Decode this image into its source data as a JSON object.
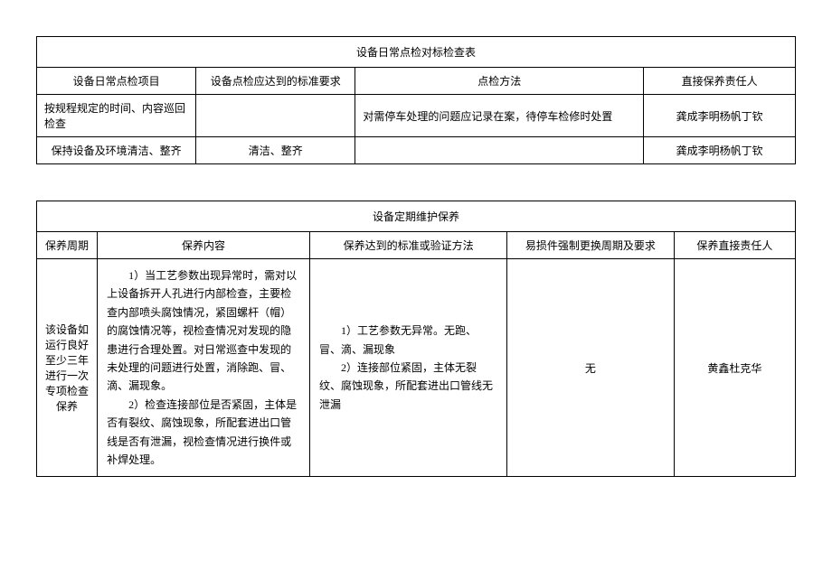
{
  "table1": {
    "title": "设备日常点检对标检查表",
    "headers": {
      "col1": "设备日常点检项目",
      "col2": "设备点检应达到的标准要求",
      "col3": "点检方法",
      "col4": "直接保养责任人"
    },
    "rows": [
      {
        "c1": "按规程规定的时间、内容巡回检查",
        "c2": "",
        "c3": "对需停车处理的问题应记录在案，待停车检修时处置",
        "c4": "龚成李明杨帆丁钦"
      },
      {
        "c1": "保持设备及环境清洁、整齐",
        "c2": "清洁、整齐",
        "c3": "",
        "c4": "龚成李明杨帆丁钦"
      }
    ]
  },
  "table2": {
    "title": "设备定期维护保养",
    "headers": {
      "col1": "保养周期",
      "col2": "保养内容",
      "col3": "保养达到的标准或验证方法",
      "col4": "易损件强制更换周期及要求",
      "col5": "保养直接责任人"
    },
    "row": {
      "c1": "该设备如运行良好至少三年进行一次专项检查保养",
      "c2_p1": "1）当工艺参数出现异常时，需对以上设备拆开人孔进行内部检查，主要检查内部喷头腐蚀情况，紧固螺杆（帽）的腐蚀情况等，视检查情况对发现的隐患进行合理处置。对日常巡查中发现的未处理的问题进行处置，消除跑、冒、滴、漏现象。",
      "c2_p2": "2）检查连接部位是否紧固，主体是否有裂纹、腐蚀现象，所配套进出口管线是否有泄漏，视检查情况进行换件或补焊处理。",
      "c3_p1": "1）工艺参数无异常。无跑、冒、滴、漏现象",
      "c3_p2": "2）连接部位紧固，主体无裂纹、腐蚀现象，所配套进出口管线无泄漏",
      "c4": "无",
      "c5": "黄鑫杜克华"
    }
  }
}
